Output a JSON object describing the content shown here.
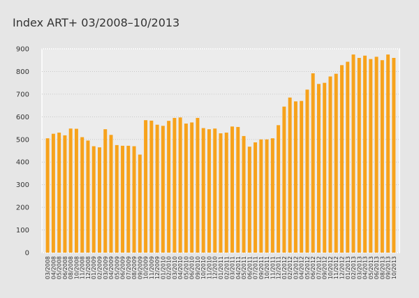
{
  "chart_data": {
    "type": "bar",
    "title": "Index ART+ 03/2008–10/2013",
    "categories": [
      "03/2008",
      "04/2008",
      "05/2008",
      "06/2008",
      "08/2008",
      "10/2008",
      "11/2008",
      "12/2008",
      "01/2009",
      "02/2009",
      "03/2009",
      "04/2009",
      "05/2009",
      "06/2009",
      "07/2009",
      "08/2009",
      "09/2009",
      "10/2009",
      "11/2009",
      "12/2009",
      "01/2010",
      "02/2010",
      "03/2010",
      "04/2010",
      "05/2010",
      "06/2010",
      "09/2010",
      "10/2010",
      "11/2010",
      "12/2010",
      "01/2011",
      "02/2011",
      "03/2011",
      "04/2011",
      "05/2011",
      "06/2011",
      "07/2011",
      "09/2011",
      "10/2011",
      "11/2011",
      "12/2011",
      "01/2012",
      "02/2012",
      "03/2012",
      "04/2012",
      "05/2012",
      "06/2012",
      "07/2012",
      "09/2012",
      "10/2012",
      "11/2012",
      "12/2012",
      "01/2013",
      "02/2013",
      "03/2013",
      "04/2013",
      "05/2013",
      "06/2013",
      "08/2013",
      "09/2013",
      "10/2013"
    ],
    "values": [
      505,
      525,
      530,
      518,
      548,
      547,
      510,
      495,
      470,
      465,
      545,
      520,
      475,
      472,
      472,
      470,
      433,
      585,
      583,
      565,
      560,
      582,
      595,
      597,
      570,
      575,
      595,
      550,
      545,
      548,
      527,
      530,
      557,
      555,
      515,
      468,
      487,
      500,
      500,
      505,
      563,
      645,
      685,
      668,
      670,
      720,
      792,
      745,
      750,
      778,
      790,
      828,
      843,
      875,
      860,
      870,
      855,
      865,
      850,
      875,
      860
    ],
    "color": "#f7a21b",
    "ylim": [
      0,
      900
    ],
    "yticks": [
      0,
      100,
      200,
      300,
      400,
      500,
      600,
      700,
      800,
      900
    ],
    "grid": true
  }
}
